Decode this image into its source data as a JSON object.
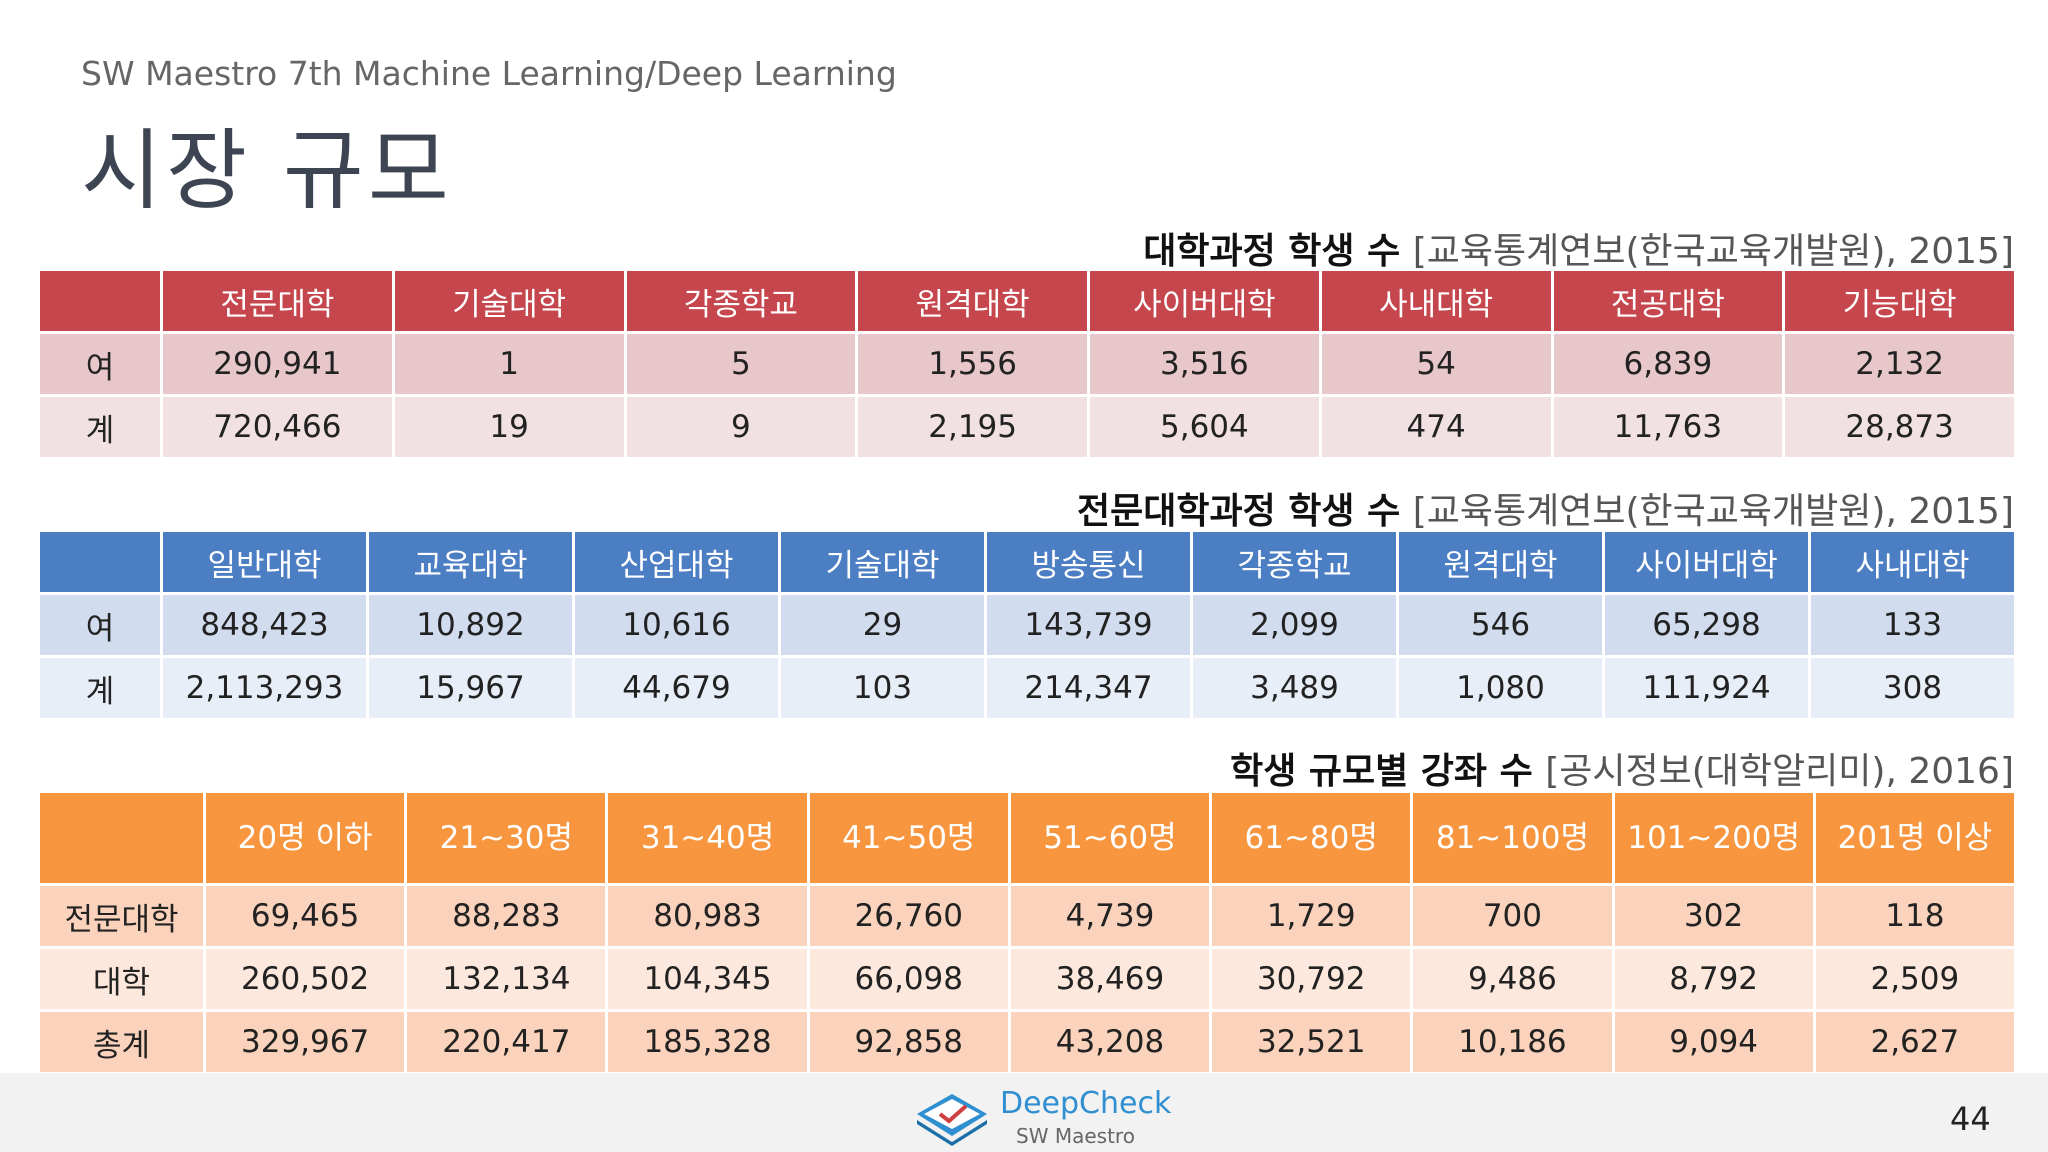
{
  "header": {
    "subtitle": "SW Maestro 7th Machine Learning/Deep Learning",
    "title": "시장 규모"
  },
  "tables": [
    {
      "caption": "대학과정 학생 수",
      "source": "[교육통계연보(한국교육개발원), 2015]",
      "columns": [
        "",
        "전문대학",
        "기술대학",
        "각종학교",
        "원격대학",
        "사이버대학",
        "사내대학",
        "전공대학",
        "기능대학"
      ],
      "rows": [
        [
          "여",
          "290,941",
          "1",
          "5",
          "1,556",
          "3,516",
          "54",
          "6,839",
          "2,132"
        ],
        [
          "계",
          "720,466",
          "19",
          "9",
          "2,195",
          "5,604",
          "474",
          "11,763",
          "28,873"
        ]
      ]
    },
    {
      "caption": "전문대학과정 학생 수",
      "source": "[교육통계연보(한국교육개발원), 2015]",
      "columns": [
        "",
        "일반대학",
        "교육대학",
        "산업대학",
        "기술대학",
        "방송통신",
        "각종학교",
        "원격대학",
        "사이버대학",
        "사내대학"
      ],
      "rows": [
        [
          "여",
          "848,423",
          "10,892",
          "10,616",
          "29",
          "143,739",
          "2,099",
          "546",
          "65,298",
          "133"
        ],
        [
          "계",
          "2,113,293",
          "15,967",
          "44,679",
          "103",
          "214,347",
          "3,489",
          "1,080",
          "111,924",
          "308"
        ]
      ]
    },
    {
      "caption": "학생 규모별 강좌 수",
      "source": "[공시정보(대학알리미), 2016]",
      "columns": [
        "",
        "20명 이하",
        "21~30명",
        "31~40명",
        "41~50명",
        "51~60명",
        "61~80명",
        "81~100명",
        "101~200명",
        "201명 이상"
      ],
      "rows": [
        [
          "전문대학",
          "69,465",
          "88,283",
          "80,983",
          "26,760",
          "4,739",
          "1,729",
          "700",
          "302",
          "118"
        ],
        [
          "대학",
          "260,502",
          "132,134",
          "104,345",
          "66,098",
          "38,469",
          "30,792",
          "9,486",
          "8,792",
          "2,509"
        ],
        [
          "총계",
          "329,967",
          "220,417",
          "185,328",
          "92,858",
          "43,208",
          "32,521",
          "10,186",
          "9,094",
          "2,627"
        ]
      ]
    }
  ],
  "footer": {
    "logo_name": "DeepCheck",
    "logo_sub": "SW Maestro",
    "page": "44"
  }
}
